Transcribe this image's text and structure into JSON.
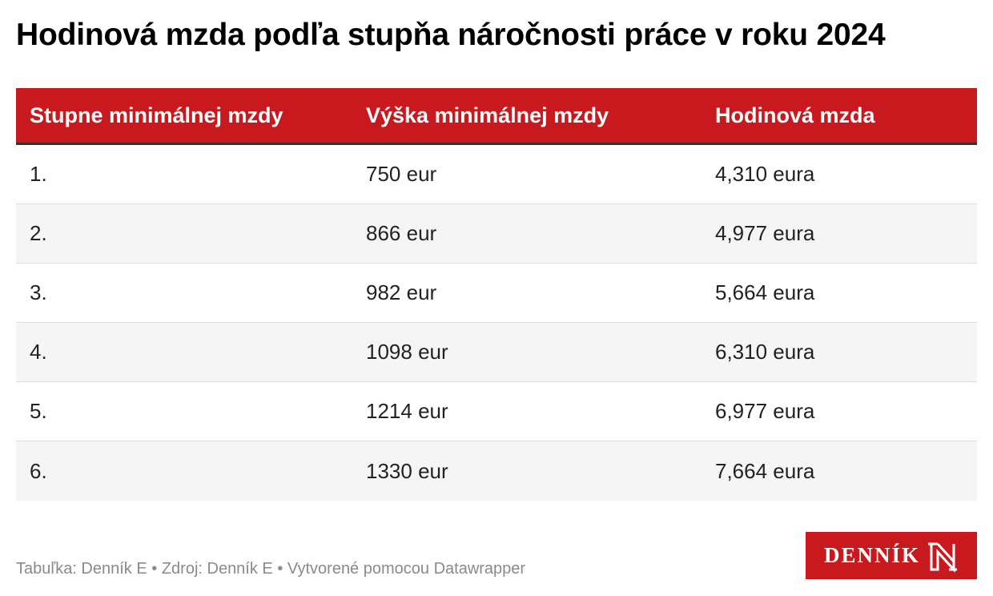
{
  "title": "Hodinová mzda podľa stupňa náročnosti práce v roku 2024",
  "table": {
    "headers": [
      "Stupne minimálnej mzdy",
      "Výška minimálnej mzdy",
      "Hodinová mzda"
    ],
    "rows": [
      [
        "1.",
        "750 eur",
        "4,310 eura"
      ],
      [
        "2.",
        "866 eur",
        "4,977 eura"
      ],
      [
        "3.",
        "982 eur",
        "5,664 eura"
      ],
      [
        "4.",
        "1098 eur",
        "6,310 eura"
      ],
      [
        "5.",
        "1214 eur",
        "6,977 eura"
      ],
      [
        "6.",
        "1330 eur",
        "7,664 eura"
      ]
    ]
  },
  "footer": "Tabuľka: Denník E • Zdroj: Denník E • Vytvorené pomocou Datawrapper",
  "logo": {
    "text": "DENNÍK",
    "mark_icon": "letter-n-icon"
  },
  "colors": {
    "accent": "#c8191f",
    "row_alt": "#f5f5f5",
    "footer_text": "#8a8a8a"
  }
}
